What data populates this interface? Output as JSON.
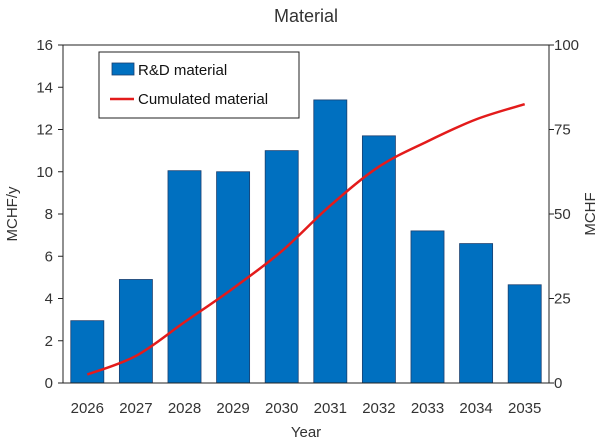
{
  "chart_data": {
    "type": "bar",
    "title": "Material",
    "xlabel": "Year",
    "ylabel": "MCHF/y",
    "y2label": "MCHF",
    "categories": [
      "2026",
      "2027",
      "2028",
      "2029",
      "2030",
      "2031",
      "2032",
      "2033",
      "2034",
      "2035"
    ],
    "ylim": [
      0,
      16
    ],
    "yticks": [
      0,
      2,
      4,
      6,
      8,
      10,
      12,
      14,
      16
    ],
    "y2lim": [
      0,
      100
    ],
    "y2ticks": [
      0,
      25,
      50,
      75,
      100
    ],
    "grid": false,
    "legend_position": "top-left",
    "series": [
      {
        "name": "R&D material",
        "type": "bar",
        "axis": "left",
        "color": "#0070C0",
        "values": [
          2.95,
          4.9,
          10.05,
          10.0,
          11.0,
          13.4,
          11.7,
          7.2,
          6.6,
          4.65
        ]
      },
      {
        "name": "Cumulated material",
        "type": "line",
        "axis": "right",
        "color": "#E31B1B",
        "values": [
          2.5,
          8.0,
          18.0,
          28.0,
          39.0,
          52.5,
          64.0,
          71.5,
          78.0,
          82.5
        ]
      }
    ]
  }
}
